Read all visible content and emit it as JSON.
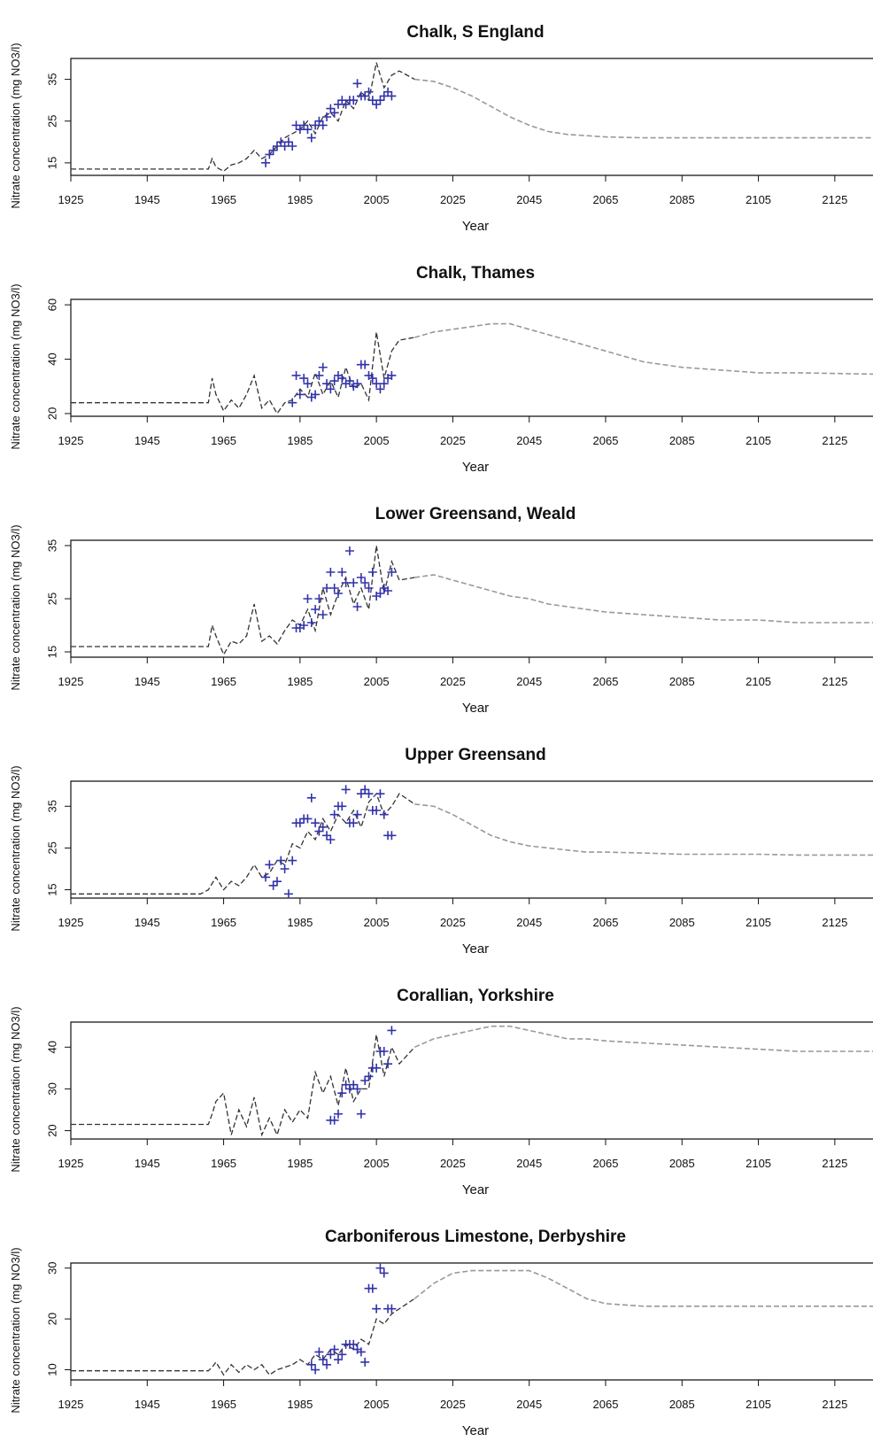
{
  "colors": {
    "observed": "#3333aa",
    "model_hist": "#333333",
    "model_forecast": "#999999",
    "axis": "#111111"
  },
  "chart_data": [
    {
      "type": "line",
      "title": "Chalk, S England",
      "xlabel": "Year",
      "ylabel": "Nitrate concentration (mg NO3/l)",
      "xticks": [
        1925,
        1945,
        1965,
        1985,
        2005,
        2025,
        2045,
        2065,
        2085,
        2105,
        2125
      ],
      "yticks": [
        15,
        25,
        35
      ],
      "xlim": [
        1925,
        2135
      ],
      "ylim": [
        12,
        40
      ],
      "series": [
        {
          "kind": "model",
          "x": [
            1925,
            1961,
            1962,
            1963,
            1965,
            1967,
            1969,
            1971,
            1973,
            1975,
            1977,
            1979,
            1981,
            1983,
            1985,
            1987,
            1989,
            1991,
            1993,
            1995,
            1997,
            1999,
            2001,
            2003,
            2005,
            2007,
            2009,
            2011,
            2015,
            2020,
            2025,
            2030,
            2035,
            2040,
            2045,
            2050,
            2055,
            2060,
            2065,
            2075,
            2085,
            2095,
            2105,
            2115,
            2135
          ],
          "y": [
            13.5,
            13.5,
            16,
            14,
            13,
            14.5,
            15,
            16,
            18,
            16,
            17,
            19,
            21,
            22,
            23,
            25,
            22,
            26,
            27,
            25,
            30,
            28,
            32,
            30,
            39,
            33,
            36,
            37,
            35,
            34.5,
            33,
            31,
            28.5,
            26,
            24,
            22.5,
            21.8,
            21.5,
            21.2,
            21,
            21,
            21,
            21,
            21,
            21
          ]
        },
        {
          "kind": "observed",
          "x": [
            1976,
            1977,
            1978,
            1979,
            1980,
            1981,
            1982,
            1983,
            1984,
            1985,
            1986,
            1987,
            1988,
            1989,
            1990,
            1991,
            1992,
            1993,
            1994,
            1995,
            1996,
            1997,
            1998,
            1999,
            2000,
            2001,
            2002,
            2003,
            2004,
            2005,
            2006,
            2007,
            2008,
            2009
          ],
          "y": [
            15,
            17,
            18,
            19,
            20,
            19,
            20,
            19,
            24,
            23,
            24,
            23,
            21,
            24,
            25,
            24,
            26,
            28,
            27,
            29,
            30,
            29,
            30,
            30,
            34,
            31,
            31,
            32,
            30,
            29,
            30,
            31,
            32,
            31
          ]
        }
      ]
    },
    {
      "type": "line",
      "title": "Chalk, Thames",
      "xlabel": "Year",
      "ylabel": "Nitrate concentration (mg NO3/l)",
      "xticks": [
        1925,
        1945,
        1965,
        1985,
        2005,
        2025,
        2045,
        2065,
        2085,
        2105,
        2125
      ],
      "yticks": [
        20,
        40,
        60
      ],
      "xlim": [
        1925,
        2135
      ],
      "ylim": [
        19,
        62
      ],
      "series": [
        {
          "kind": "model",
          "x": [
            1925,
            1961,
            1962,
            1963,
            1965,
            1967,
            1969,
            1971,
            1973,
            1975,
            1977,
            1979,
            1981,
            1983,
            1985,
            1987,
            1989,
            1991,
            1993,
            1995,
            1997,
            1999,
            2001,
            2003,
            2005,
            2007,
            2009,
            2011,
            2015,
            2020,
            2025,
            2030,
            2035,
            2040,
            2045,
            2050,
            2055,
            2060,
            2065,
            2075,
            2085,
            2095,
            2105,
            2115,
            2135
          ],
          "y": [
            24,
            24,
            33,
            27,
            21,
            25,
            22,
            27,
            34,
            22,
            25,
            20,
            24,
            25,
            29,
            26,
            35,
            27,
            32,
            26,
            37,
            29,
            31,
            25,
            50,
            33,
            43,
            47,
            48,
            50,
            51,
            52,
            53,
            53,
            51,
            49,
            47,
            45,
            43,
            39,
            37,
            36,
            35,
            35,
            34.5
          ]
        },
        {
          "kind": "observed",
          "x": [
            1983,
            1984,
            1985,
            1986,
            1987,
            1988,
            1989,
            1990,
            1991,
            1992,
            1993,
            1994,
            1995,
            1996,
            1997,
            1998,
            1999,
            2000,
            2001,
            2002,
            2003,
            2004,
            2005,
            2006,
            2007,
            2008,
            2009
          ],
          "y": [
            24,
            34,
            27,
            33,
            31,
            26,
            27,
            34,
            37,
            31,
            29,
            32,
            34,
            33,
            31,
            32,
            30,
            31,
            38,
            38,
            34,
            33,
            31,
            29,
            31,
            33,
            34
          ]
        }
      ]
    },
    {
      "type": "line",
      "title": "Lower Greensand, Weald",
      "xlabel": "Year",
      "ylabel": "Nitrate concentration (mg NO3/l)",
      "xticks": [
        1925,
        1945,
        1965,
        1985,
        2005,
        2025,
        2045,
        2065,
        2085,
        2105,
        2125
      ],
      "yticks": [
        15,
        25,
        35
      ],
      "xlim": [
        1925,
        2135
      ],
      "ylim": [
        14,
        36
      ],
      "series": [
        {
          "kind": "model",
          "x": [
            1925,
            1961,
            1962,
            1963,
            1965,
            1967,
            1969,
            1971,
            1973,
            1975,
            1977,
            1979,
            1981,
            1983,
            1985,
            1987,
            1989,
            1991,
            1993,
            1995,
            1997,
            1999,
            2001,
            2003,
            2005,
            2007,
            2009,
            2011,
            2015,
            2020,
            2025,
            2030,
            2035,
            2040,
            2045,
            2050,
            2055,
            2060,
            2065,
            2075,
            2085,
            2095,
            2105,
            2115,
            2135
          ],
          "y": [
            16,
            16,
            20,
            18,
            14.5,
            17,
            16.5,
            18,
            24,
            17,
            18,
            16.5,
            19,
            21,
            20,
            23,
            19,
            27,
            22,
            26,
            29,
            24,
            27,
            23,
            35,
            26,
            32,
            28.5,
            29,
            29.5,
            28.5,
            27.5,
            26.5,
            25.5,
            25,
            24,
            23.5,
            23,
            22.5,
            22,
            21.5,
            21,
            21,
            20.5,
            20.5
          ]
        },
        {
          "kind": "observed",
          "x": [
            1984,
            1985,
            1986,
            1987,
            1988,
            1989,
            1990,
            1991,
            1992,
            1993,
            1994,
            1995,
            1996,
            1997,
            1998,
            1999,
            2000,
            2001,
            2002,
            2003,
            2004,
            2005,
            2006,
            2007,
            2008,
            2009
          ],
          "y": [
            19.5,
            19.5,
            20,
            25,
            20.5,
            23,
            25,
            22,
            27,
            30,
            27,
            26,
            30,
            28,
            34,
            28,
            23.5,
            29,
            28,
            27,
            30,
            25.5,
            26,
            27,
            26.5,
            30
          ]
        }
      ]
    },
    {
      "type": "line",
      "title": "Upper Greensand",
      "xlabel": "Year",
      "ylabel": "Nitrate concentration (mg NO3/l)",
      "xticks": [
        1925,
        1945,
        1965,
        1985,
        2005,
        2025,
        2045,
        2065,
        2085,
        2105,
        2125
      ],
      "yticks": [
        15,
        25,
        35
      ],
      "xlim": [
        1925,
        2135
      ],
      "ylim": [
        13,
        41
      ],
      "series": [
        {
          "kind": "model",
          "x": [
            1925,
            1959,
            1961,
            1963,
            1965,
            1967,
            1969,
            1971,
            1973,
            1975,
            1977,
            1979,
            1981,
            1983,
            1985,
            1987,
            1989,
            1991,
            1993,
            1995,
            1997,
            1999,
            2001,
            2003,
            2005,
            2007,
            2009,
            2011,
            2015,
            2020,
            2025,
            2030,
            2035,
            2040,
            2045,
            2050,
            2055,
            2060,
            2065,
            2075,
            2085,
            2095,
            2105,
            2115,
            2135
          ],
          "y": [
            14,
            14,
            15,
            18,
            15,
            17,
            16,
            18,
            21,
            18,
            19,
            22,
            21,
            26,
            25,
            29,
            27,
            32,
            29,
            33,
            31,
            34,
            30,
            36,
            38,
            33,
            35,
            38,
            35.5,
            35,
            33,
            30.5,
            28,
            26.5,
            25.5,
            25,
            24.5,
            24,
            24,
            23.8,
            23.5,
            23.5,
            23.5,
            23.3,
            23.3
          ]
        },
        {
          "kind": "observed",
          "x": [
            1976,
            1977,
            1978,
            1979,
            1980,
            1981,
            1982,
            1983,
            1984,
            1985,
            1986,
            1987,
            1988,
            1989,
            1990,
            1991,
            1992,
            1993,
            1994,
            1995,
            1996,
            1997,
            1998,
            1999,
            2000,
            2001,
            2002,
            2003,
            2004,
            2005,
            2006,
            2007,
            2008,
            2009
          ],
          "y": [
            18,
            21,
            16,
            17,
            22,
            20,
            14,
            22,
            31,
            31,
            32,
            32,
            37,
            31,
            29,
            30,
            28,
            27,
            33,
            35,
            35,
            39,
            31,
            31,
            33,
            38,
            39,
            38,
            34,
            34,
            38,
            33,
            28,
            28
          ]
        }
      ]
    },
    {
      "type": "line",
      "title": "Corallian, Yorkshire",
      "xlabel": "Year",
      "ylabel": "Nitrate concentration (mg NO3/l)",
      "xticks": [
        1925,
        1945,
        1965,
        1985,
        2005,
        2025,
        2045,
        2065,
        2085,
        2105,
        2125
      ],
      "yticks": [
        20,
        30,
        40
      ],
      "xlim": [
        1925,
        2135
      ],
      "ylim": [
        18,
        46
      ],
      "series": [
        {
          "kind": "model",
          "x": [
            1925,
            1961,
            1962,
            1963,
            1965,
            1967,
            1969,
            1971,
            1973,
            1975,
            1977,
            1979,
            1981,
            1983,
            1985,
            1987,
            1989,
            1991,
            1993,
            1995,
            1997,
            1999,
            2001,
            2003,
            2005,
            2007,
            2009,
            2011,
            2015,
            2020,
            2025,
            2030,
            2035,
            2040,
            2045,
            2050,
            2055,
            2060,
            2065,
            2075,
            2085,
            2095,
            2105,
            2115,
            2135
          ],
          "y": [
            21.5,
            21.5,
            24,
            27,
            29,
            19,
            25,
            21,
            28,
            19,
            23,
            19,
            25,
            22,
            25,
            23,
            34,
            29,
            33,
            26,
            35,
            27,
            30,
            30,
            43,
            33,
            40,
            36,
            40,
            42,
            43,
            44,
            45,
            45,
            44,
            43,
            42,
            42,
            41.5,
            41,
            40.5,
            40,
            39.5,
            39,
            39
          ]
        },
        {
          "kind": "observed",
          "x": [
            1993,
            1994,
            1995,
            1996,
            1997,
            1998,
            1999,
            2000,
            2001,
            2002,
            2003,
            2004,
            2005,
            2006,
            2007,
            2008,
            2009
          ],
          "y": [
            22.5,
            22.5,
            24,
            29,
            31,
            30,
            31,
            30,
            24,
            32,
            33,
            35,
            35,
            39,
            39,
            36,
            44
          ]
        }
      ]
    },
    {
      "type": "line",
      "title": "Carboniferous Limestone, Derbyshire",
      "xlabel": "Year",
      "ylabel": "Nitrate concentration (mg NO3/l)",
      "xticks": [
        1925,
        1945,
        1965,
        1985,
        2005,
        2025,
        2045,
        2065,
        2085,
        2105,
        2125
      ],
      "yticks": [
        10,
        20,
        30
      ],
      "xlim": [
        1925,
        2135
      ],
      "ylim": [
        8,
        31
      ],
      "series": [
        {
          "kind": "model",
          "x": [
            1925,
            1961,
            1962,
            1963,
            1965,
            1967,
            1969,
            1971,
            1973,
            1975,
            1977,
            1979,
            1981,
            1983,
            1985,
            1987,
            1989,
            1991,
            1993,
            1995,
            1997,
            1999,
            2001,
            2003,
            2005,
            2007,
            2009,
            2011,
            2015,
            2020,
            2025,
            2030,
            2035,
            2040,
            2045,
            2050,
            2055,
            2060,
            2065,
            2075,
            2085,
            2095,
            2105,
            2115,
            2135
          ],
          "y": [
            9.8,
            9.8,
            10.5,
            11.5,
            9,
            11,
            9.5,
            11,
            10,
            11,
            9,
            10,
            10.5,
            11,
            12,
            11,
            13,
            12,
            14,
            13,
            15,
            14,
            16,
            15,
            20,
            19,
            21,
            22,
            24,
            27,
            29,
            29.5,
            29.5,
            29.5,
            29.5,
            28,
            26,
            24,
            23,
            22.5,
            22.5,
            22.5,
            22.5,
            22.5,
            22.5
          ]
        },
        {
          "kind": "observed",
          "x": [
            1988,
            1989,
            1990,
            1991,
            1992,
            1993,
            1994,
            1995,
            1996,
            1997,
            1998,
            1999,
            2000,
            2001,
            2002,
            2003,
            2004,
            2005,
            2006,
            2007,
            2008,
            2009
          ],
          "y": [
            11,
            10,
            13.5,
            12,
            11,
            13,
            14,
            12,
            13,
            15,
            15,
            15,
            14,
            13.5,
            11.5,
            26,
            26,
            22,
            30,
            29,
            22,
            22
          ]
        }
      ]
    }
  ]
}
